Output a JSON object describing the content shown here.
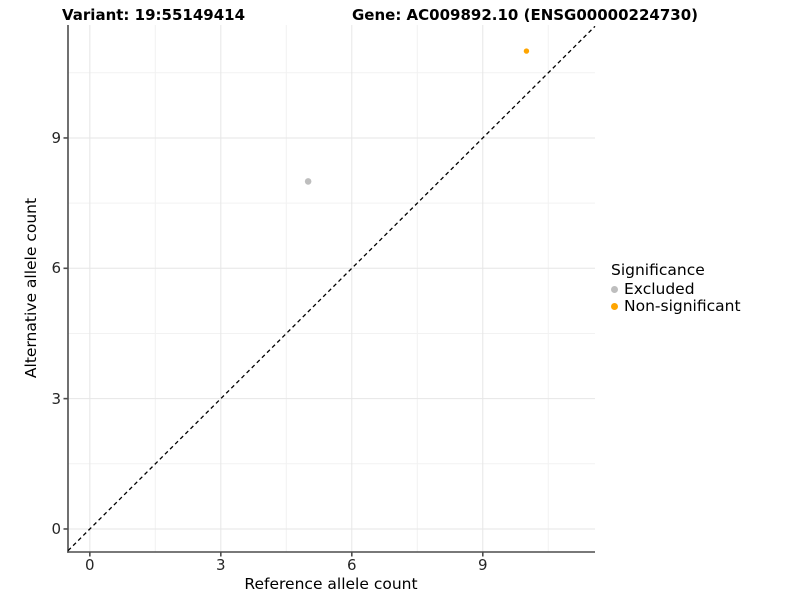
{
  "header": {
    "variant_title": "Variant: 19:55149414",
    "gene_title": "Gene: AC009892.10 (ENSG00000224730)"
  },
  "chart_data": {
    "type": "scatter",
    "xlabel": "Reference allele count",
    "ylabel": "Alternative allele count",
    "x_ticks": [
      0,
      3,
      6,
      9
    ],
    "y_ticks": [
      0,
      3,
      6,
      9
    ],
    "x_minor_ticks": [
      1.5,
      4.5,
      7.5,
      10.5
    ],
    "y_minor_ticks": [
      1.5,
      4.5,
      7.5,
      10.5
    ],
    "xlim": [
      -0.5,
      11.57
    ],
    "ylim": [
      -0.53,
      11.6
    ],
    "grid": true,
    "legend_position": "right",
    "identity_line": {
      "slope": 1,
      "intercept": 0,
      "style": "dashed",
      "color": "#000000"
    },
    "series": [
      {
        "name": "Excluded",
        "color": "#bebebe",
        "point_radius": 3.3,
        "points": [
          {
            "x": 5,
            "y": 8
          }
        ]
      },
      {
        "name": "Non-significant",
        "color": "#ffa500",
        "point_radius": 2.7,
        "points": [
          {
            "x": 10,
            "y": 11
          }
        ]
      }
    ]
  },
  "legend": {
    "title": "Significance",
    "items": [
      {
        "label": "Excluded",
        "color": "#bebebe"
      },
      {
        "label": "Non-significant",
        "color": "#ffa500"
      }
    ]
  },
  "style": {
    "axis_line_color": "#4d4d4d",
    "major_grid_color": "#e6e6e6",
    "minor_grid_color": "#f2f2f2",
    "tick_color": "#4d4d4d",
    "tick_label_color": "#262626",
    "background": "#ffffff"
  }
}
